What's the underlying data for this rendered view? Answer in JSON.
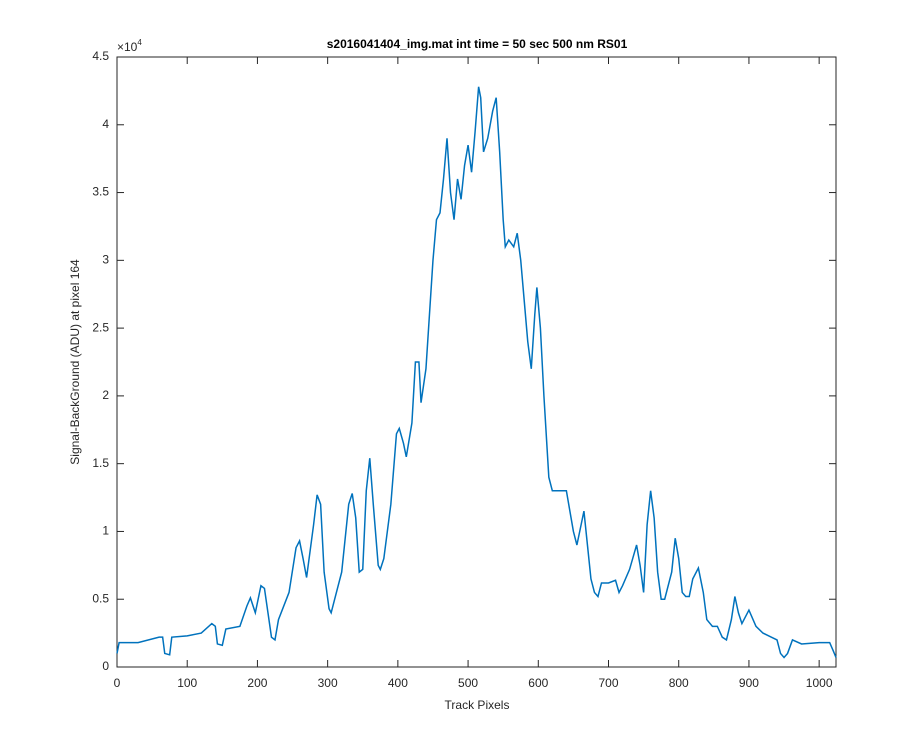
{
  "chart_data": {
    "type": "line",
    "title": "s2016041404_img.mat int time = 50 sec  500 nm RS01",
    "x_label": "Track Pixels",
    "y_label": "Signal-BackGround (ADU) at pixel 164",
    "y_exponent": {
      "base": "×10",
      "power": "4"
    },
    "xlim": [
      0,
      1024
    ],
    "ylim": [
      0,
      45000
    ],
    "xticks": [
      0,
      100,
      200,
      300,
      400,
      500,
      600,
      700,
      800,
      900,
      1000
    ],
    "yticks": [
      {
        "value": 0,
        "label": "0"
      },
      {
        "value": 5000,
        "label": "0.5"
      },
      {
        "value": 10000,
        "label": "1"
      },
      {
        "value": 15000,
        "label": "1.5"
      },
      {
        "value": 20000,
        "label": "2"
      },
      {
        "value": 25000,
        "label": "2.5"
      },
      {
        "value": 30000,
        "label": "3"
      },
      {
        "value": 35000,
        "label": "3.5"
      },
      {
        "value": 40000,
        "label": "4"
      },
      {
        "value": 45000,
        "label": "4.5"
      }
    ],
    "grid": false,
    "series": [
      {
        "color": "#0072bd",
        "x": [
          0,
          3,
          30,
          60,
          65,
          68,
          75,
          78,
          100,
          120,
          135,
          140,
          143,
          150,
          155,
          175,
          185,
          190,
          197,
          205,
          210,
          215,
          220,
          225,
          230,
          245,
          255,
          260,
          265,
          270,
          280,
          285,
          290,
          295,
          302,
          305,
          310,
          320,
          330,
          335,
          340,
          345,
          350,
          355,
          360,
          365,
          372,
          375,
          380,
          390,
          398,
          402,
          408,
          412,
          420,
          425,
          430,
          433,
          440,
          450,
          455,
          460,
          465,
          470,
          475,
          480,
          485,
          490,
          495,
          500,
          505,
          510,
          515,
          518,
          522,
          528,
          535,
          540,
          545,
          550,
          553,
          558,
          565,
          570,
          575,
          580,
          585,
          590,
          595,
          598,
          603,
          608,
          615,
          620,
          630,
          640,
          645,
          650,
          655,
          665,
          670,
          675,
          680,
          685,
          690,
          700,
          710,
          715,
          720,
          730,
          740,
          745,
          750,
          755,
          760,
          765,
          770,
          775,
          780,
          790,
          795,
          800,
          805,
          810,
          815,
          820,
          828,
          835,
          840,
          848,
          855,
          862,
          868,
          875,
          880,
          885,
          890,
          900,
          910,
          920,
          940,
          945,
          950,
          955,
          962,
          975,
          1000,
          1015,
          1020,
          1024
        ],
        "values": [
          1000,
          1800,
          1800,
          2200,
          2200,
          1000,
          900,
          2200,
          2300,
          2500,
          3200,
          3000,
          1700,
          1600,
          2800,
          3000,
          4500,
          5100,
          4000,
          6000,
          5800,
          4000,
          2200,
          2000,
          3500,
          5500,
          8800,
          9300,
          8000,
          6600,
          10500,
          12700,
          12000,
          7000,
          4300,
          4000,
          5000,
          7000,
          12000,
          12800,
          11000,
          7000,
          7200,
          13000,
          15400,
          12000,
          7500,
          7200,
          8000,
          12000,
          17200,
          17600,
          16500,
          15500,
          18000,
          22500,
          22500,
          19500,
          22000,
          30000,
          33000,
          33500,
          36000,
          39000,
          35000,
          33000,
          36000,
          34500,
          37000,
          38500,
          36500,
          39500,
          42800,
          42000,
          38000,
          39000,
          41000,
          42000,
          38000,
          33000,
          31000,
          31500,
          31000,
          32000,
          30000,
          27000,
          24000,
          22000,
          26000,
          28000,
          25000,
          20000,
          14000,
          13000,
          13000,
          13000,
          11500,
          10000,
          9000,
          11500,
          9000,
          6500,
          5500,
          5200,
          6200,
          6200,
          6400,
          5500,
          6000,
          7200,
          9000,
          7500,
          5500,
          10500,
          13000,
          11000,
          7000,
          5000,
          5000,
          7000,
          9500,
          8000,
          5500,
          5200,
          5200,
          6500,
          7300,
          5500,
          3500,
          3000,
          3000,
          2200,
          2000,
          3500,
          5200,
          4000,
          3200,
          4200,
          3000,
          2500,
          2000,
          1000,
          700,
          1000,
          2000,
          1700,
          1800,
          1800,
          1200,
          700
        ]
      }
    ]
  }
}
